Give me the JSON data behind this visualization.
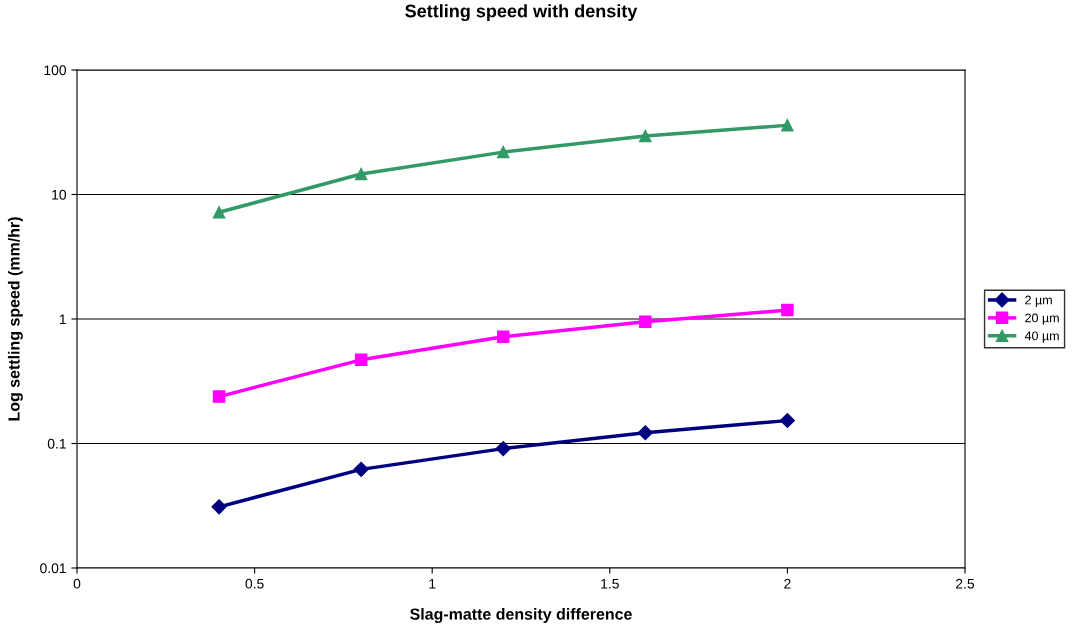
{
  "chart_data": {
    "type": "line",
    "title": "Settling speed with density",
    "xlabel": "Slag-matte density difference",
    "ylabel": "Log settling speed (mm/hr)",
    "x": [
      0.4,
      0.8,
      1.2,
      1.6,
      2.0
    ],
    "series": [
      {
        "name": "2 µm",
        "color": "#000080",
        "marker": "diamond",
        "values": [
          0.031,
          0.062,
          0.091,
          0.122,
          0.153
        ]
      },
      {
        "name": "20 µm",
        "color": "#ff00ff",
        "marker": "square",
        "values": [
          0.238,
          0.47,
          0.72,
          0.95,
          1.18
        ]
      },
      {
        "name": "40 µm",
        "color": "#339966",
        "marker": "triangle",
        "values": [
          7.2,
          14.6,
          21.9,
          29.5,
          36
        ]
      }
    ],
    "log": "y",
    "xlim": [
      0,
      2.5
    ],
    "xticks": [
      0,
      0.5,
      1,
      1.5,
      2,
      2.5
    ],
    "ylim": [
      0.01,
      100
    ],
    "yticks": [
      0.01,
      0.1,
      1,
      10,
      100
    ],
    "grid": "y",
    "legend": "right",
    "line_style": "solid"
  }
}
